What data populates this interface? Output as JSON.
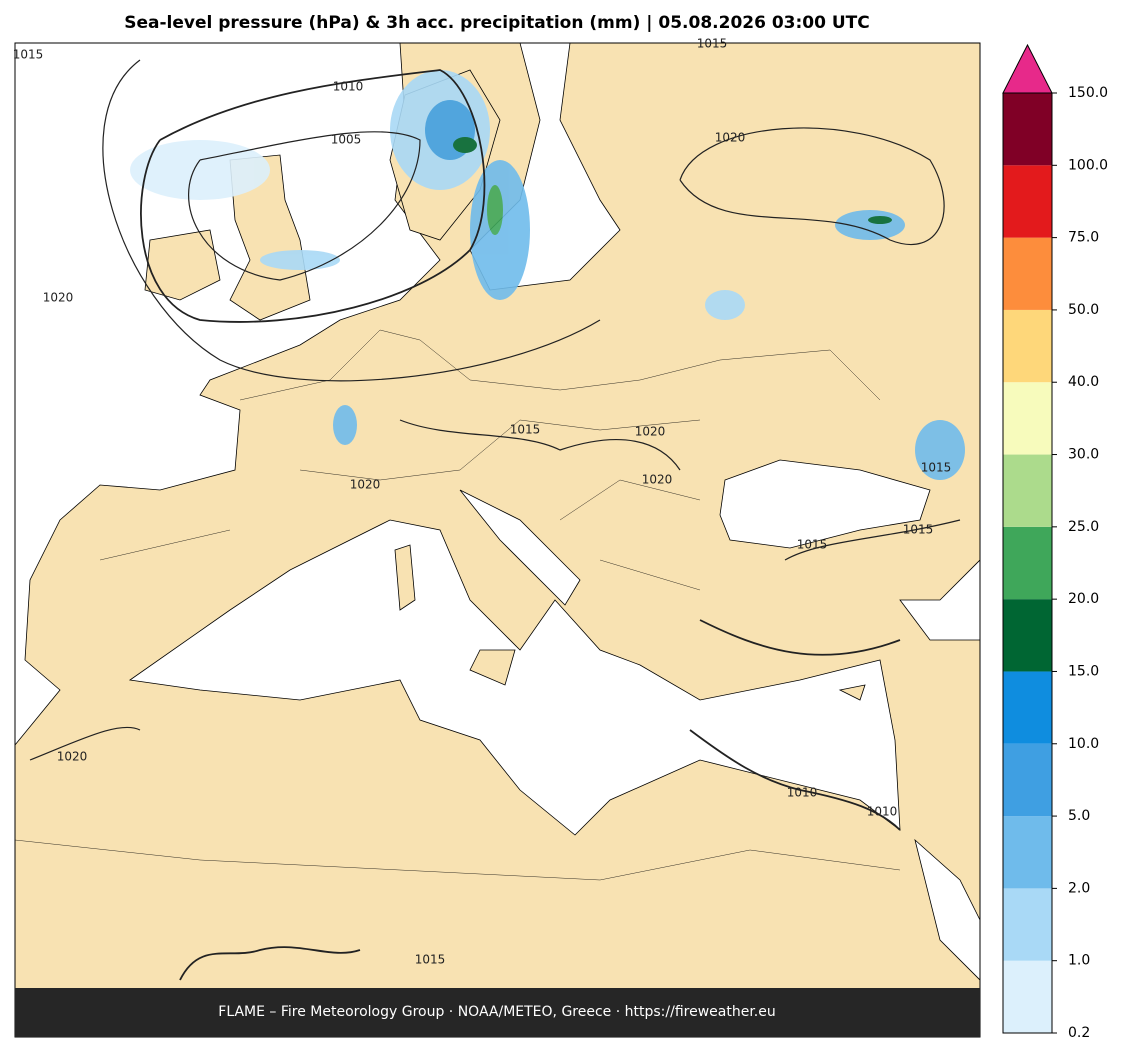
{
  "header": {
    "title": "Sea-level pressure (hPa) & 3h acc. precipitation (mm)  |  05.08.2026 03:00 UTC"
  },
  "map": {
    "contour_labels": [
      1015,
      1010,
      1005,
      1020,
      1015,
      1020,
      1015,
      1020,
      1020,
      1020,
      1015,
      1015,
      1015,
      1020,
      1010,
      1010,
      1015
    ]
  },
  "colorbar": {
    "levels": [
      {
        "value": 0.2,
        "label": "0.2"
      },
      {
        "value": 1.0,
        "label": "1.0"
      },
      {
        "value": 2.0,
        "label": "2.0"
      },
      {
        "value": 5.0,
        "label": "5.0"
      },
      {
        "value": 10.0,
        "label": "10.0"
      },
      {
        "value": 15.0,
        "label": "15.0"
      },
      {
        "value": 20.0,
        "label": "20.0"
      },
      {
        "value": 25.0,
        "label": "25.0"
      },
      {
        "value": 30.0,
        "label": "30.0"
      },
      {
        "value": 40.0,
        "label": "40.0"
      },
      {
        "value": 50.0,
        "label": "50.0"
      },
      {
        "value": 75.0,
        "label": "75.0"
      },
      {
        "value": 100.0,
        "label": "100.0"
      },
      {
        "value": 150.0,
        "label": "150.0"
      }
    ],
    "colors": [
      "#dcf0fc",
      "#a9d9f6",
      "#6fbbeb",
      "#3f9fe2",
      "#0f8ddf",
      "#006633",
      "#3fa75a",
      "#acdb8c",
      "#f7fbbc",
      "#fed77a",
      "#fd8d3c",
      "#e31a1c",
      "#800026"
    ],
    "extend_color": "#e7298a"
  },
  "footer": {
    "text": "FLAME – Fire Meteorology Group · NOAA/METEO, Greece · https://fireweather.eu"
  }
}
